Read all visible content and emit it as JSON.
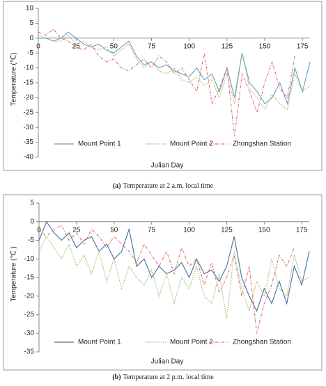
{
  "chart_data": [
    {
      "type": "line",
      "caption_label": "(a)",
      "caption": "Temperature at 2 a.m. local time",
      "xlabel": "Julian Day",
      "ylabel": "Temperature (℃)",
      "x": [
        0,
        5,
        10,
        15,
        20,
        25,
        30,
        35,
        40,
        45,
        50,
        55,
        60,
        65,
        70,
        75,
        80,
        85,
        90,
        95,
        100,
        105,
        110,
        115,
        120,
        125,
        130,
        135,
        140,
        145,
        150,
        155,
        160,
        165,
        170,
        175,
        180
      ],
      "xlim": [
        0,
        180
      ],
      "xticks": [
        0,
        25,
        50,
        75,
        100,
        125,
        150,
        175
      ],
      "ylim": [
        -40,
        10
      ],
      "yticks": [
        10,
        5,
        0,
        -5,
        -10,
        -15,
        -20,
        -25,
        -30,
        -35,
        -40
      ],
      "series": [
        {
          "name": "Mount Point 1",
          "color": "#6a9cc4",
          "style": "solid",
          "values": [
            0,
            0,
            -1,
            0,
            2,
            0,
            -2,
            -3,
            -2,
            -4,
            -5,
            -3,
            -1,
            -6,
            -9,
            -8,
            -10,
            -9,
            -11,
            -12,
            -13,
            -10,
            -14,
            -12,
            -18,
            -10,
            -20,
            -5,
            -15,
            -18,
            -22,
            -20,
            -15,
            -22,
            -10,
            -18,
            -8
          ]
        },
        {
          "name": "Mount Point 2",
          "color": "#9bbb59",
          "style": "dotted",
          "values": [
            1,
            0,
            -1,
            -1,
            1,
            -2,
            -1,
            -3,
            -4,
            -3,
            -6,
            -4,
            -2,
            -7,
            -10,
            -8,
            -11,
            -12,
            -10,
            -14,
            -15,
            -13,
            -16,
            -14,
            -20,
            -12,
            -22,
            -5,
            -17,
            -20,
            -24,
            -19,
            -22,
            -24,
            -12,
            -18,
            -16
          ]
        },
        {
          "name": "Zhongshan Station",
          "color": "#e0696b",
          "style": "dashdot",
          "values": [
            2,
            1,
            3,
            0,
            -1,
            -3,
            -4,
            -2,
            -6,
            -8,
            -7,
            -10,
            -11,
            -9,
            -7,
            -10,
            -6,
            -8,
            -12,
            -10,
            -14,
            -18,
            -5,
            -22,
            -17,
            -10,
            -33,
            -12,
            -18,
            -25,
            -15,
            -8,
            -17,
            -20,
            -6,
            null,
            null
          ]
        }
      ]
    },
    {
      "type": "line",
      "caption_label": "(b)",
      "caption": "Temperature at 2 p.m. local time",
      "xlabel": "Julian Day",
      "ylabel": "Temperature (℃ )",
      "x": [
        0,
        5,
        10,
        15,
        20,
        25,
        30,
        35,
        40,
        45,
        50,
        55,
        60,
        65,
        70,
        75,
        80,
        85,
        90,
        95,
        100,
        105,
        110,
        115,
        120,
        125,
        130,
        135,
        140,
        145,
        150,
        155,
        160,
        165,
        170,
        175,
        180
      ],
      "xlim": [
        0,
        180
      ],
      "xticks": [
        0,
        25,
        50,
        75,
        100,
        125,
        150,
        175
      ],
      "ylim": [
        -35,
        5
      ],
      "yticks": [
        5,
        0,
        -5,
        -10,
        -15,
        -20,
        -25,
        -30,
        -35
      ],
      "series": [
        {
          "name": "Mount Point 1",
          "color": "#3f6f9f",
          "style": "solid",
          "values": [
            -5,
            0,
            -3,
            -5,
            -3,
            -7,
            -5,
            -4,
            -8,
            -6,
            -10,
            -8,
            -2,
            -12,
            -10,
            -15,
            -12,
            -14,
            -13,
            -11,
            -15,
            -10,
            -14,
            -13,
            -16,
            -12,
            -4,
            -15,
            -20,
            -24,
            -18,
            -22,
            -16,
            -22,
            -12,
            -17,
            -8
          ]
        },
        {
          "name": "Mount Point 2",
          "color": "#9bbb59",
          "style": "dotted",
          "values": [
            -8,
            -4,
            -7,
            -10,
            -6,
            -12,
            -9,
            -14,
            -8,
            -16,
            -10,
            -18,
            -12,
            -15,
            -17,
            -13,
            -20,
            -14,
            -22,
            -15,
            -18,
            -12,
            -20,
            -22,
            -14,
            -26,
            -8,
            -18,
            -24,
            -16,
            -20,
            -10,
            -18,
            -20,
            -9,
            -16,
            -15
          ]
        },
        {
          "name": "Zhongshan Station",
          "color": "#e0696b",
          "style": "dashdot",
          "values": [
            -2,
            -4,
            -2,
            -1,
            -5,
            -3,
            -6,
            -2,
            -4,
            -7,
            -4,
            -6,
            -8,
            -11,
            -6,
            -9,
            -12,
            -8,
            -14,
            -7,
            -12,
            -10,
            -17,
            -11,
            -19,
            -15,
            -9,
            -20,
            -12,
            -30,
            -22,
            -17,
            -9,
            -12,
            -7,
            null,
            null
          ]
        }
      ]
    }
  ]
}
